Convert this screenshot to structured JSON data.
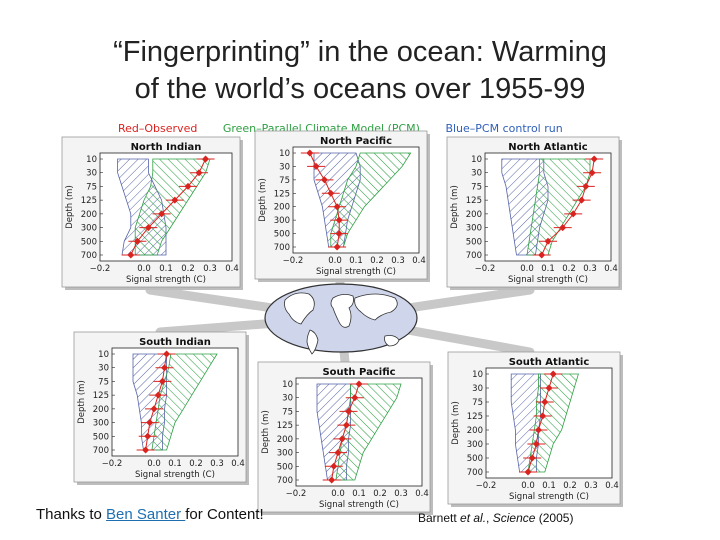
{
  "page": {
    "title_line1": "“Fingerprinting” in the ocean: Warming",
    "title_line2": "of the world’s oceans over 1955-99",
    "credit_prefix": "Thanks to ",
    "credit_link": "Ben Santer ",
    "credit_suffix": "for Content!",
    "ref_prefix": "Barnett ",
    "ref_etal": "et al.",
    "ref_sep": ", ",
    "ref_journal": "Science",
    "ref_year": " (2005)"
  },
  "legend": [
    {
      "label": "Red–Observed",
      "color": "#d9231f"
    },
    {
      "label": "Green–Parallel Climate Model (PCM)",
      "color": "#2ea043"
    },
    {
      "label": "Blue–PCM control run",
      "color": "#2f5fb8"
    }
  ],
  "colors": {
    "observed": "#d9231f",
    "pcm": "#2ea043",
    "control": "#5663a8",
    "panel_bg": "#f4f4f4"
  },
  "chart_data": [
    {
      "type": "line",
      "title": "North Indian",
      "xlabel": "Signal strength (C)",
      "ylabel": "Depth (m)",
      "xlim": [
        -0.2,
        0.4
      ],
      "xticks": [
        "−0.2",
        "0.0",
        "0.1",
        "0.2",
        "0.3",
        "0.4"
      ],
      "depths": [
        10,
        30,
        75,
        125,
        200,
        300,
        500,
        700
      ],
      "depth_labels": [
        "10",
        "30",
        "75",
        "125",
        "200",
        "300",
        "500",
        "700"
      ],
      "observed": [
        0.28,
        0.25,
        0.2,
        0.14,
        0.08,
        0.02,
        -0.03,
        -0.06
      ],
      "pcm_range": [
        [
          0.04,
          0.3
        ],
        [
          0.04,
          0.28
        ],
        [
          0.03,
          0.24
        ],
        [
          0.0,
          0.2
        ],
        [
          -0.02,
          0.16
        ],
        [
          -0.04,
          0.12
        ],
        [
          -0.04,
          0.08
        ],
        [
          -0.04,
          0.06
        ]
      ],
      "control_range": [
        [
          -0.12,
          0.02
        ],
        [
          -0.12,
          0.02
        ],
        [
          -0.1,
          0.05
        ],
        [
          -0.08,
          0.08
        ],
        [
          -0.06,
          0.09
        ],
        [
          -0.06,
          0.1
        ],
        [
          -0.09,
          0.1
        ],
        [
          -0.1,
          0.1
        ]
      ]
    },
    {
      "type": "line",
      "title": "North Pacific",
      "xlabel": "Signal strength (C)",
      "ylabel": "Depth (m)",
      "xlim": [
        -0.2,
        0.4
      ],
      "xticks": [
        "−0.2",
        "0.0",
        "0.1",
        "0.2",
        "0.3",
        "0.4"
      ],
      "depths": [
        10,
        30,
        75,
        125,
        200,
        300,
        500,
        700
      ],
      "depth_labels": [
        "10",
        "30",
        "75",
        "125",
        "200",
        "300",
        "500",
        "700"
      ],
      "observed": [
        -0.12,
        -0.09,
        -0.05,
        -0.02,
        0.01,
        0.02,
        0.02,
        0.01
      ],
      "pcm_range": [
        [
          0.12,
          0.36
        ],
        [
          0.1,
          0.32
        ],
        [
          0.06,
          0.26
        ],
        [
          0.04,
          0.2
        ],
        [
          0.02,
          0.14
        ],
        [
          0.0,
          0.1
        ],
        [
          -0.02,
          0.06
        ],
        [
          -0.02,
          0.04
        ]
      ],
      "control_range": [
        [
          -0.1,
          0.1
        ],
        [
          -0.1,
          0.12
        ],
        [
          -0.1,
          0.12
        ],
        [
          -0.08,
          0.1
        ],
        [
          -0.06,
          0.08
        ],
        [
          -0.05,
          0.06
        ],
        [
          -0.04,
          0.05
        ],
        [
          -0.03,
          0.04
        ]
      ]
    },
    {
      "type": "line",
      "title": "North Atlantic",
      "xlabel": "Signal strength (C)",
      "ylabel": "Depth (m)",
      "xlim": [
        -0.2,
        0.4
      ],
      "xticks": [
        "−0.2",
        "0.0",
        "0.1",
        "0.2",
        "0.3",
        "0.4"
      ],
      "depths": [
        10,
        30,
        75,
        125,
        200,
        300,
        500,
        700
      ],
      "depth_labels": [
        "10",
        "30",
        "75",
        "125",
        "200",
        "300",
        "500",
        "700"
      ],
      "observed": [
        0.32,
        0.31,
        0.28,
        0.26,
        0.22,
        0.17,
        0.1,
        0.07
      ],
      "pcm_range": [
        [
          0.06,
          0.3
        ],
        [
          0.06,
          0.3
        ],
        [
          0.05,
          0.28
        ],
        [
          0.04,
          0.24
        ],
        [
          0.03,
          0.2
        ],
        [
          0.02,
          0.16
        ],
        [
          0.01,
          0.12
        ],
        [
          0.0,
          0.1
        ]
      ],
      "control_range": [
        [
          -0.12,
          0.08
        ],
        [
          -0.12,
          0.08
        ],
        [
          -0.1,
          0.1
        ],
        [
          -0.09,
          0.1
        ],
        [
          -0.08,
          0.08
        ],
        [
          -0.07,
          0.06
        ],
        [
          -0.06,
          0.05
        ],
        [
          -0.05,
          0.04
        ]
      ]
    },
    {
      "type": "line",
      "title": "South Indian",
      "xlabel": "Signal strength (C)",
      "ylabel": "Depth (m)",
      "xlim": [
        -0.2,
        0.4
      ],
      "xticks": [
        "−0.2",
        "0.0",
        "0.1",
        "0.2",
        "0.3",
        "0.4"
      ],
      "depths": [
        10,
        30,
        75,
        125,
        200,
        300,
        500,
        700
      ],
      "depth_labels": [
        "10",
        "30",
        "75",
        "125",
        "200",
        "300",
        "500",
        "700"
      ],
      "observed": [
        0.06,
        0.05,
        0.04,
        0.02,
        0.0,
        -0.02,
        -0.03,
        -0.04
      ],
      "pcm_range": [
        [
          0.08,
          0.3
        ],
        [
          0.07,
          0.26
        ],
        [
          0.05,
          0.22
        ],
        [
          0.03,
          0.18
        ],
        [
          0.02,
          0.14
        ],
        [
          0.01,
          0.1
        ],
        [
          0.0,
          0.08
        ],
        [
          -0.01,
          0.06
        ]
      ],
      "control_range": [
        [
          -0.1,
          0.06
        ],
        [
          -0.1,
          0.06
        ],
        [
          -0.1,
          0.06
        ],
        [
          -0.08,
          0.06
        ],
        [
          -0.07,
          0.05
        ],
        [
          -0.06,
          0.05
        ],
        [
          -0.06,
          0.04
        ],
        [
          -0.05,
          0.04
        ]
      ]
    },
    {
      "type": "line",
      "title": "South Pacific",
      "xlabel": "Signal strength (C)",
      "ylabel": "Depth (m)",
      "xlim": [
        -0.2,
        0.4
      ],
      "xticks": [
        "−0.2",
        "0.0",
        "0.1",
        "0.2",
        "0.3",
        "0.4"
      ],
      "depths": [
        10,
        30,
        75,
        125,
        200,
        300,
        500,
        700
      ],
      "depth_labels": [
        "10",
        "30",
        "75",
        "125",
        "200",
        "300",
        "500",
        "700"
      ],
      "observed": [
        0.1,
        0.08,
        0.05,
        0.04,
        0.02,
        0.0,
        -0.02,
        -0.03
      ],
      "pcm_range": [
        [
          0.06,
          0.3
        ],
        [
          0.06,
          0.28
        ],
        [
          0.05,
          0.24
        ],
        [
          0.04,
          0.2
        ],
        [
          0.02,
          0.16
        ],
        [
          0.01,
          0.12
        ],
        [
          0.0,
          0.1
        ],
        [
          -0.01,
          0.08
        ]
      ],
      "control_range": [
        [
          -0.1,
          0.06
        ],
        [
          -0.1,
          0.06
        ],
        [
          -0.1,
          0.06
        ],
        [
          -0.09,
          0.06
        ],
        [
          -0.08,
          0.05
        ],
        [
          -0.07,
          0.05
        ],
        [
          -0.06,
          0.04
        ],
        [
          -0.05,
          0.04
        ]
      ]
    },
    {
      "type": "line",
      "title": "South Atlantic",
      "xlabel": "Signal strength (C)",
      "ylabel": "Depth (m)",
      "xlim": [
        -0.2,
        0.4
      ],
      "xticks": [
        "−0.2",
        "0.0",
        "0.1",
        "0.2",
        "0.3",
        "0.4"
      ],
      "depths": [
        10,
        30,
        75,
        125,
        200,
        300,
        500,
        700
      ],
      "depth_labels": [
        "10",
        "30",
        "75",
        "125",
        "200",
        "300",
        "500",
        "700"
      ],
      "observed": [
        0.12,
        0.1,
        0.08,
        0.07,
        0.05,
        0.04,
        0.02,
        0.0
      ],
      "pcm_range": [
        [
          0.05,
          0.24
        ],
        [
          0.05,
          0.22
        ],
        [
          0.04,
          0.2
        ],
        [
          0.04,
          0.18
        ],
        [
          0.03,
          0.16
        ],
        [
          0.02,
          0.12
        ],
        [
          0.01,
          0.1
        ],
        [
          0.0,
          0.08
        ]
      ],
      "control_range": [
        [
          -0.08,
          0.06
        ],
        [
          -0.08,
          0.06
        ],
        [
          -0.08,
          0.06
        ],
        [
          -0.07,
          0.06
        ],
        [
          -0.06,
          0.05
        ],
        [
          -0.06,
          0.05
        ],
        [
          -0.05,
          0.04
        ],
        [
          -0.04,
          0.04
        ]
      ]
    }
  ]
}
